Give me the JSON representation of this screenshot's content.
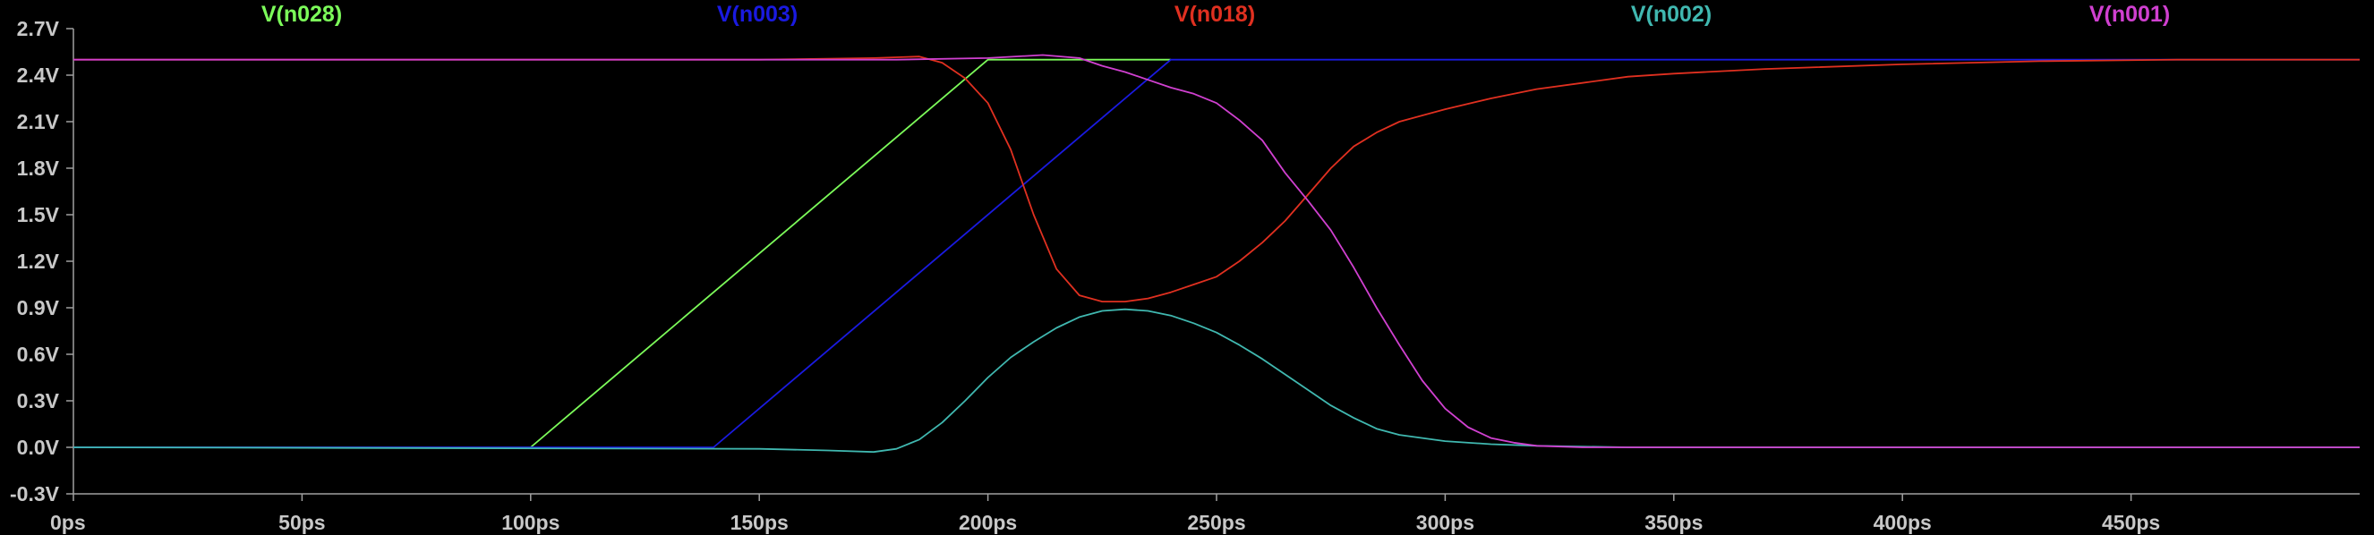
{
  "chart_data": {
    "type": "line",
    "background": "#000000",
    "axis_color": "#a0a0a0",
    "x_unit": "ps",
    "y_unit": "V",
    "xlim": [
      0,
      500
    ],
    "ylim": [
      -0.3,
      2.7
    ],
    "x_ticks": [
      0,
      50,
      100,
      150,
      200,
      250,
      300,
      350,
      400,
      450
    ],
    "x_tick_labels": [
      "0ps",
      "50ps",
      "100ps",
      "150ps",
      "200ps",
      "250ps",
      "300ps",
      "350ps",
      "400ps",
      "450ps"
    ],
    "y_ticks": [
      2.7,
      2.4,
      2.1,
      1.8,
      1.5,
      1.2,
      0.9,
      0.6,
      0.3,
      0.0,
      -0.3
    ],
    "y_tick_labels": [
      "2.7V",
      "2.4V",
      "2.1V",
      "1.8V",
      "1.5V",
      "1.2V",
      "0.9V",
      "0.6V",
      "0.3V",
      "0.0V",
      "-0.3V"
    ],
    "grid": false,
    "legend_placement": "top",
    "series": [
      {
        "name": "V(n028)",
        "color": "#7cfc5a",
        "points": [
          [
            0,
            0.0
          ],
          [
            100,
            0.0
          ],
          [
            200,
            2.5
          ],
          [
            240,
            2.5
          ]
        ]
      },
      {
        "name": "V(n003)",
        "color": "#1a1ae0",
        "points": [
          [
            0,
            0.0
          ],
          [
            140,
            0.0
          ],
          [
            240,
            2.5
          ],
          [
            340,
            2.5
          ],
          [
            500,
            2.5
          ]
        ]
      },
      {
        "name": "V(n018)",
        "color": "#e03020",
        "points": [
          [
            0,
            2.5
          ],
          [
            150,
            2.5
          ],
          [
            175,
            2.51
          ],
          [
            185,
            2.52
          ],
          [
            190,
            2.48
          ],
          [
            195,
            2.38
          ],
          [
            200,
            2.22
          ],
          [
            205,
            1.92
          ],
          [
            210,
            1.5
          ],
          [
            215,
            1.15
          ],
          [
            220,
            0.98
          ],
          [
            225,
            0.94
          ],
          [
            230,
            0.94
          ],
          [
            235,
            0.96
          ],
          [
            240,
            1.0
          ],
          [
            245,
            1.05
          ],
          [
            250,
            1.1
          ],
          [
            255,
            1.2
          ],
          [
            260,
            1.32
          ],
          [
            265,
            1.46
          ],
          [
            270,
            1.63
          ],
          [
            275,
            1.8
          ],
          [
            280,
            1.94
          ],
          [
            285,
            2.03
          ],
          [
            290,
            2.1
          ],
          [
            300,
            2.18
          ],
          [
            310,
            2.25
          ],
          [
            320,
            2.31
          ],
          [
            330,
            2.35
          ],
          [
            340,
            2.39
          ],
          [
            350,
            2.41
          ],
          [
            370,
            2.44
          ],
          [
            400,
            2.47
          ],
          [
            430,
            2.49
          ],
          [
            460,
            2.5
          ],
          [
            500,
            2.5
          ]
        ]
      },
      {
        "name": "V(n002)",
        "color": "#40b8b0",
        "points": [
          [
            0,
            0.0
          ],
          [
            150,
            -0.01
          ],
          [
            165,
            -0.02
          ],
          [
            175,
            -0.03
          ],
          [
            180,
            -0.01
          ],
          [
            185,
            0.05
          ],
          [
            190,
            0.16
          ],
          [
            195,
            0.3
          ],
          [
            200,
            0.45
          ],
          [
            205,
            0.58
          ],
          [
            210,
            0.68
          ],
          [
            215,
            0.77
          ],
          [
            220,
            0.84
          ],
          [
            225,
            0.88
          ],
          [
            230,
            0.89
          ],
          [
            235,
            0.88
          ],
          [
            240,
            0.85
          ],
          [
            245,
            0.8
          ],
          [
            250,
            0.74
          ],
          [
            255,
            0.66
          ],
          [
            260,
            0.57
          ],
          [
            265,
            0.47
          ],
          [
            270,
            0.37
          ],
          [
            275,
            0.27
          ],
          [
            280,
            0.19
          ],
          [
            285,
            0.12
          ],
          [
            290,
            0.08
          ],
          [
            300,
            0.04
          ],
          [
            310,
            0.02
          ],
          [
            320,
            0.01
          ],
          [
            340,
            0.0
          ],
          [
            500,
            0.0
          ]
        ]
      },
      {
        "name": "V(n001)",
        "color": "#d040d0",
        "points": [
          [
            0,
            2.5
          ],
          [
            180,
            2.5
          ],
          [
            200,
            2.51
          ],
          [
            212,
            2.53
          ],
          [
            220,
            2.51
          ],
          [
            225,
            2.46
          ],
          [
            230,
            2.42
          ],
          [
            235,
            2.37
          ],
          [
            240,
            2.32
          ],
          [
            245,
            2.28
          ],
          [
            250,
            2.22
          ],
          [
            255,
            2.11
          ],
          [
            260,
            1.98
          ],
          [
            265,
            1.77
          ],
          [
            270,
            1.59
          ],
          [
            275,
            1.4
          ],
          [
            280,
            1.16
          ],
          [
            285,
            0.9
          ],
          [
            290,
            0.66
          ],
          [
            295,
            0.43
          ],
          [
            300,
            0.25
          ],
          [
            305,
            0.13
          ],
          [
            310,
            0.06
          ],
          [
            315,
            0.03
          ],
          [
            320,
            0.01
          ],
          [
            330,
            0.0
          ],
          [
            500,
            0.0
          ]
        ]
      }
    ]
  }
}
